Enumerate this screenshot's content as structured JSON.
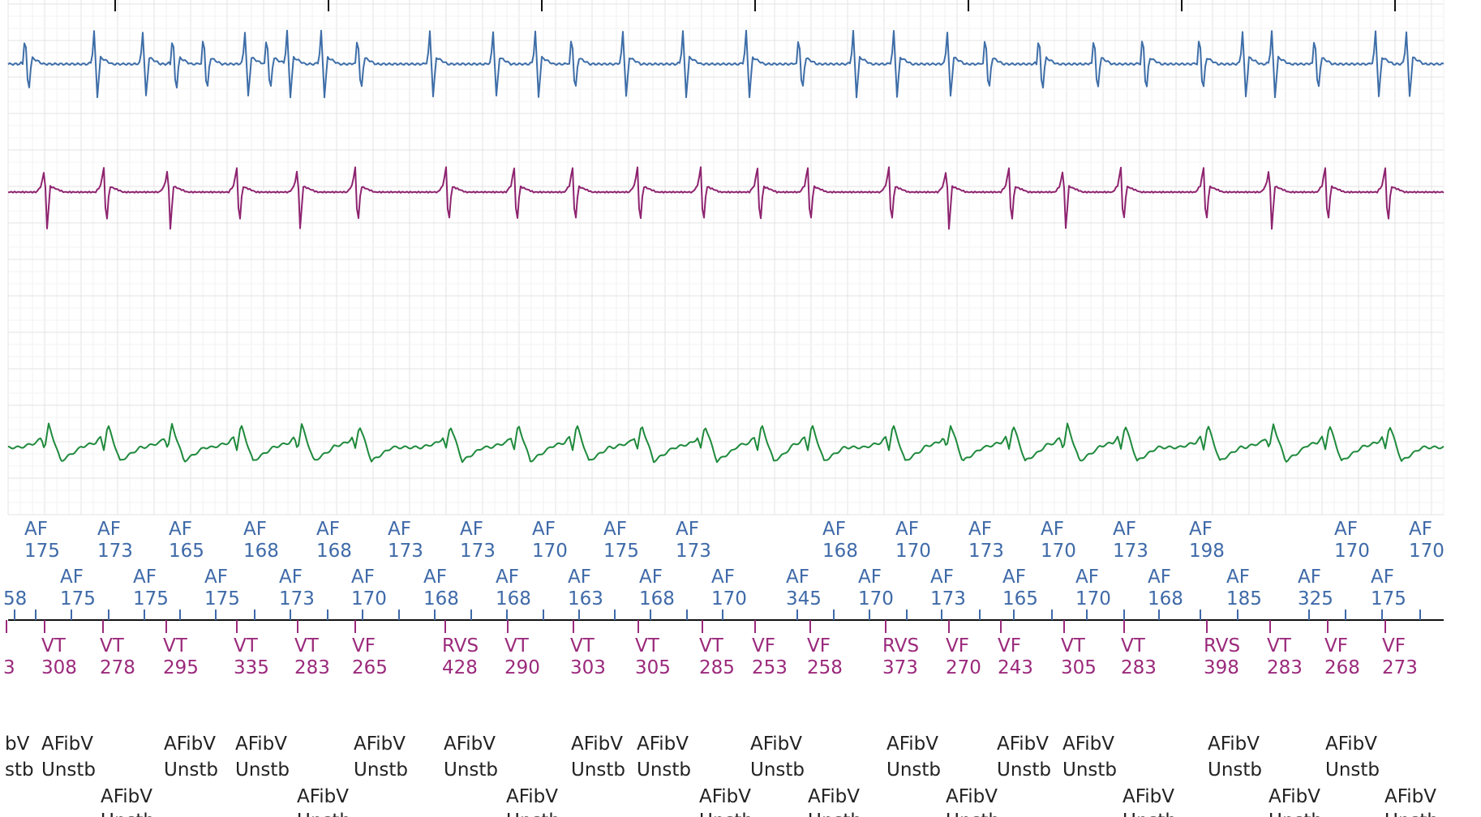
{
  "chart_data": {
    "type": "line",
    "series": [
      {
        "key": "atrial_egm",
        "color": "#3e6ea8",
        "beats": [
          31,
          116,
          176,
          213,
          251,
          302,
          329,
          354,
          396,
          441,
          530,
          608,
          660,
          705,
          768,
          842,
          920,
          985,
          1052,
          1102,
          1168,
          1215,
          1281,
          1349,
          1409,
          1479,
          1532,
          1568,
          1621,
          1696,
          1734,
          1791
        ],
        "pattern": "biphasic-narrow"
      },
      {
        "key": "ventricular_egm",
        "color": "#8e2470",
        "beats": [
          55,
          128,
          207,
          292,
          367,
          438,
          550,
          634,
          706,
          786,
          864,
          934,
          996,
          1096,
          1167,
          1244,
          1311,
          1382,
          1484,
          1565,
          1634,
          1708
        ],
        "pattern": "negative-spike"
      },
      {
        "key": "shock_egm",
        "color": "#1f8a3c",
        "beats": [
          55,
          128,
          207,
          292,
          367,
          438,
          550,
          634,
          706,
          786,
          864,
          934,
          996,
          1096,
          1167,
          1244,
          1311,
          1382,
          1484,
          1565,
          1634,
          1708
        ],
        "pattern": "broad-complex"
      }
    ],
    "atrial_markers_row1": [
      {
        "label": "AF",
        "value": "175"
      },
      {
        "label": "AF",
        "value": "173"
      },
      {
        "label": "AF",
        "value": "165"
      },
      {
        "label": "AF",
        "value": "168"
      },
      {
        "label": "AF",
        "value": "168"
      },
      {
        "label": "AF",
        "value": "173"
      },
      {
        "label": "AF",
        "value": "173"
      },
      {
        "label": "AF",
        "value": "170"
      },
      {
        "label": "AF",
        "value": "175"
      },
      {
        "label": "AF",
        "value": "173"
      },
      {
        "label": "AF",
        "value": "168"
      },
      {
        "label": "AF",
        "value": "170"
      },
      {
        "label": "AF",
        "value": "173"
      },
      {
        "label": "AF",
        "value": "170"
      },
      {
        "label": "AF",
        "value": "173"
      },
      {
        "label": "AF",
        "value": "198"
      },
      {
        "label": "AF",
        "value": "170"
      },
      {
        "label": "AF",
        "value": "170"
      }
    ],
    "atrial_markers_row2": [
      {
        "label": "",
        "value": "58"
      },
      {
        "label": "AF",
        "value": "175"
      },
      {
        "label": "AF",
        "value": "175"
      },
      {
        "label": "AF",
        "value": "175"
      },
      {
        "label": "AF",
        "value": "173"
      },
      {
        "label": "AF",
        "value": "170"
      },
      {
        "label": "AF",
        "value": "168"
      },
      {
        "label": "AF",
        "value": "168"
      },
      {
        "label": "AF",
        "value": "163"
      },
      {
        "label": "AF",
        "value": "168"
      },
      {
        "label": "AF",
        "value": "170"
      },
      {
        "label": "AF",
        "value": "345"
      },
      {
        "label": "AF",
        "value": "170"
      },
      {
        "label": "AF",
        "value": "173"
      },
      {
        "label": "AF",
        "value": "165"
      },
      {
        "label": "AF",
        "value": "170"
      },
      {
        "label": "AF",
        "value": "168"
      },
      {
        "label": "AF",
        "value": "185"
      },
      {
        "label": "AF",
        "value": "325"
      },
      {
        "label": "AF",
        "value": "175"
      }
    ],
    "ventricular_markers": [
      {
        "label": "",
        "value": "3"
      },
      {
        "label": "VT",
        "value": "308"
      },
      {
        "label": "VT",
        "value": "278"
      },
      {
        "label": "VT",
        "value": "295"
      },
      {
        "label": "VT",
        "value": "335"
      },
      {
        "label": "VT",
        "value": "283"
      },
      {
        "label": "VF",
        "value": "265"
      },
      {
        "label": "RVS",
        "value": "428"
      },
      {
        "label": "VT",
        "value": "290"
      },
      {
        "label": "VT",
        "value": "303"
      },
      {
        "label": "VT",
        "value": "305"
      },
      {
        "label": "VT",
        "value": "285"
      },
      {
        "label": "VF",
        "value": "253"
      },
      {
        "label": "VF",
        "value": "258"
      },
      {
        "label": "RVS",
        "value": "373"
      },
      {
        "label": "VF",
        "value": "270"
      },
      {
        "label": "VF",
        "value": "243"
      },
      {
        "label": "VT",
        "value": "305"
      },
      {
        "label": "VT",
        "value": "283"
      },
      {
        "label": "RVS",
        "value": "398"
      },
      {
        "label": "VT",
        "value": "283"
      },
      {
        "label": "VF",
        "value": "268"
      },
      {
        "label": "VF",
        "value": "273"
      }
    ],
    "diagnosis_row1": [
      {
        "l1": "bV",
        "l2": "stb"
      },
      {
        "l1": "AFibV",
        "l2": "Unstb"
      },
      {
        "l1": "AFibV",
        "l2": "Unstb"
      },
      {
        "l1": "AFibV",
        "l2": "Unstb"
      },
      {
        "l1": "AFibV",
        "l2": "Unstb"
      },
      {
        "l1": "AFibV",
        "l2": "Unstb"
      },
      {
        "l1": "AFibV",
        "l2": "Unstb"
      },
      {
        "l1": "AFibV",
        "l2": "Unstb"
      },
      {
        "l1": "AFibV",
        "l2": "Unstb"
      },
      {
        "l1": "AFibV",
        "l2": "Unstb"
      },
      {
        "l1": "AFibV",
        "l2": "Unstb"
      },
      {
        "l1": "AFibV",
        "l2": "Unstb"
      },
      {
        "l1": "AFibV",
        "l2": "Unstb"
      },
      {
        "l1": "AFibV",
        "l2": "Unstb"
      }
    ],
    "diagnosis_row2": [
      {
        "l1": "AFibV",
        "l2": "Unstb"
      },
      {
        "l1": "AFibV",
        "l2": "Unstb"
      },
      {
        "l1": "AFibV",
        "l2": "Unstb"
      },
      {
        "l1": "AFibV",
        "l2": "Unstb"
      },
      {
        "l1": "AFibV",
        "l2": "Unstb"
      },
      {
        "l1": "AFibV",
        "l2": "Unstb"
      },
      {
        "l1": "AFibV",
        "l2": "Unstb"
      },
      {
        "l1": "AFibV",
        "l2": "Unstb"
      },
      {
        "l1": "AFibV",
        "l2": "Unstb"
      }
    ],
    "grid": true,
    "colors": {
      "atrial_text": "#3f6aa8",
      "ventricular_text": "#9b2a7c",
      "diagnosis_text": "#222222",
      "grid": "#e6e6e6"
    }
  }
}
